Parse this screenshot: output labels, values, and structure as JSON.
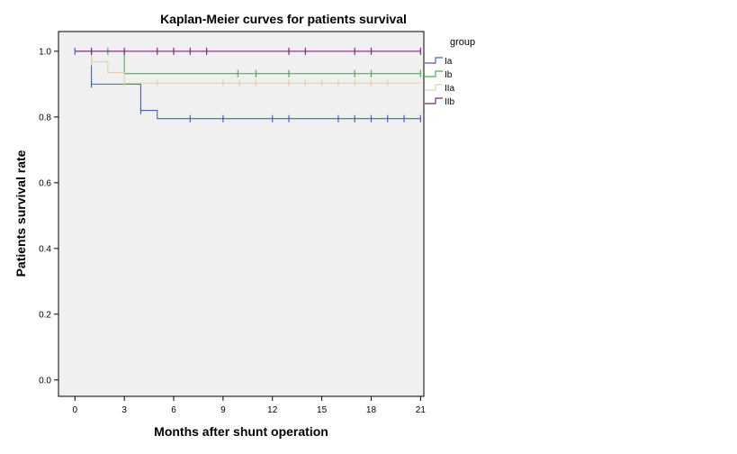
{
  "chart_data": {
    "type": "line",
    "title": "Kaplan-Meier curves for patients survival",
    "xlabel": "Months after shunt operation",
    "ylabel": "Patients survival rate",
    "xlim": [
      -1,
      21.2
    ],
    "ylim": [
      -0.05,
      1.06
    ],
    "xticks": [
      0,
      3,
      6,
      9,
      12,
      15,
      18,
      21
    ],
    "yticks": [
      0.0,
      0.2,
      0.4,
      0.6,
      0.8,
      1.0
    ],
    "ytick_labels": [
      "0.0",
      "0.2",
      "0.4",
      "0.6",
      "0.8",
      "1.0"
    ],
    "grid": false,
    "legend": {
      "title": "group",
      "position": "right"
    },
    "series": [
      {
        "name": "Ia",
        "color": "#4a60b0",
        "steps": [
          [
            0,
            1.0
          ],
          [
            1,
            0.9
          ],
          [
            4,
            0.82
          ],
          [
            5,
            0.795
          ],
          [
            21,
            0.795
          ]
        ],
        "censored": [
          0,
          1,
          4,
          7,
          9,
          12,
          13,
          16,
          17,
          18,
          19,
          20,
          21
        ]
      },
      {
        "name": "Ib",
        "color": "#3fb24c",
        "steps": [
          [
            0,
            1.0
          ],
          [
            3,
            0.932
          ],
          [
            21,
            0.932
          ]
        ],
        "censored": [
          2,
          9.9,
          11,
          13,
          17,
          18,
          21
        ]
      },
      {
        "name": "IIa",
        "color": "#e0d4a8",
        "steps": [
          [
            0,
            1.0
          ],
          [
            1,
            0.968
          ],
          [
            2,
            0.935
          ],
          [
            3,
            0.903
          ],
          [
            21,
            0.903
          ]
        ],
        "censored": [
          1,
          3,
          5,
          9,
          10,
          11,
          13,
          14,
          15,
          16,
          17,
          18,
          19
        ]
      },
      {
        "name": "IIb",
        "color": "#7a2a80",
        "steps": [
          [
            0,
            1.0
          ],
          [
            21,
            1.0
          ]
        ],
        "censored": [
          1,
          3,
          5,
          6,
          7,
          8,
          13,
          14,
          17,
          18,
          21
        ]
      }
    ]
  }
}
